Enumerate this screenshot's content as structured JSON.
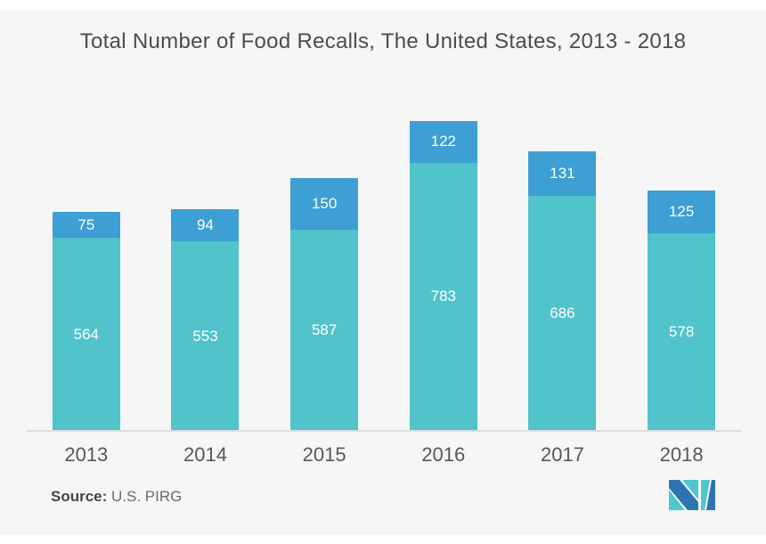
{
  "title": "Total Number of Food Recalls, The United States, 2013 - 2018",
  "source": {
    "label": "Source:",
    "text": " U.S. PIRG"
  },
  "logo": {
    "name": "mordor-intelligence-logo"
  },
  "colors": {
    "background": "#f6f6f6",
    "bar_teal": "#51c3ca",
    "bar_blue": "#3d9fd4",
    "axis_line": "#dedede",
    "title_text": "#4c4c4e",
    "year_text": "#58585a",
    "value_text": "#ffffff",
    "logo_teal": "#4fc6d2",
    "logo_blue": "#2f74b2"
  },
  "chart_data": {
    "type": "bar",
    "stacked": true,
    "title": "Total Number of Food Recalls, The United States, 2013 - 2018",
    "categories": [
      "2013",
      "2014",
      "2015",
      "2016",
      "2017",
      "2018"
    ],
    "series": [
      {
        "name": "bottom-segment",
        "color_key": "bar_teal",
        "values": [
          564,
          553,
          587,
          783,
          686,
          578
        ]
      },
      {
        "name": "top-segment",
        "color_key": "bar_blue",
        "values": [
          75,
          94,
          150,
          122,
          131,
          125
        ]
      }
    ],
    "xlabel": "",
    "ylabel": "",
    "ylim": [
      0,
      946
    ],
    "grid": false,
    "legend": "none",
    "data_labels": "inside-white"
  }
}
